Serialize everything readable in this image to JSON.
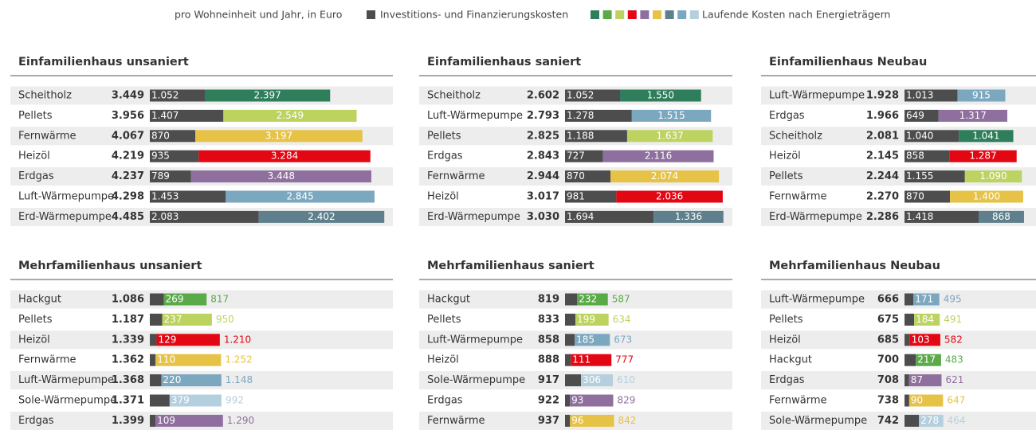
{
  "legend": {
    "note": "pro Wohneinheit und Jahr, in Euro",
    "invest": {
      "name": "Investitions- und Finanzierungskosten",
      "color": "#4d4d4d"
    },
    "running": {
      "name": "Laufende Kosten nach Energieträgern",
      "colors": [
        "#2e7d5b",
        "#5aaa4a",
        "#bcd35f",
        "#e30613",
        "#8e6f9e",
        "#e6c246",
        "#5f7f8c",
        "#7ba7bf",
        "#b4d0de"
      ]
    }
  },
  "chart_data": [
    {
      "type": "stacked_bar",
      "title": "Einfamilienhaus unsaniert",
      "running_label": "inside",
      "categories": [
        "Scheitholz",
        "Pellets",
        "Fernwärme",
        "Heizöl",
        "Erdgas",
        "Luft-Wärmepumpe",
        "Erd-Wärmepumpe"
      ],
      "totals": [
        3449,
        3956,
        4067,
        4219,
        4237,
        4298,
        4485
      ],
      "total_labels": [
        "3.449",
        "3.956",
        "4.067",
        "4.219",
        "4.237",
        "4.298",
        "4.485"
      ],
      "invest": {
        "color": "#4d4d4d",
        "values": [
          1052,
          1407,
          870,
          935,
          789,
          1453,
          2083
        ],
        "value_labels": [
          "1.052",
          "1.407",
          "870",
          "935",
          "789",
          "1.453",
          "2.083"
        ]
      },
      "running": {
        "colors": [
          "#2e7d5b",
          "#bcd35f",
          "#e6c246",
          "#e30613",
          "#8e6f9e",
          "#7ba7bf",
          "#5f7f8c"
        ],
        "values": [
          2397,
          2549,
          3197,
          3284,
          3448,
          2845,
          2402
        ],
        "value_labels": [
          "2.397",
          "2.549",
          "3.197",
          "3.284",
          "3.448",
          "2.845",
          "2.402"
        ]
      }
    },
    {
      "type": "stacked_bar",
      "title": "Einfamilienhaus saniert",
      "running_label": "inside",
      "categories": [
        "Scheitholz",
        "Luft-Wärmepumpe",
        "Pellets",
        "Erdgas",
        "Fernwärme",
        "Heizöl",
        "Erd-Wärmepumpe"
      ],
      "totals": [
        2602,
        2793,
        2825,
        2843,
        2944,
        3017,
        3030
      ],
      "total_labels": [
        "2.602",
        "2.793",
        "2.825",
        "2.843",
        "2.944",
        "3.017",
        "3.030"
      ],
      "invest": {
        "color": "#4d4d4d",
        "values": [
          1052,
          1278,
          1188,
          727,
          870,
          981,
          1694
        ],
        "value_labels": [
          "1.052",
          "1.278",
          "1.188",
          "727",
          "870",
          "981",
          "1.694"
        ]
      },
      "running": {
        "colors": [
          "#2e7d5b",
          "#7ba7bf",
          "#bcd35f",
          "#8e6f9e",
          "#e6c246",
          "#e30613",
          "#5f7f8c"
        ],
        "values": [
          1550,
          1515,
          1637,
          2116,
          2074,
          2036,
          1336
        ],
        "value_labels": [
          "1.550",
          "1.515",
          "1.637",
          "2.116",
          "2.074",
          "2.036",
          "1.336"
        ]
      }
    },
    {
      "type": "stacked_bar",
      "title": "Einfamilienhaus Neubau",
      "running_label": "inside",
      "categories": [
        "Luft-Wärmepumpe",
        "Erdgas",
        "Scheitholz",
        "Heizöl",
        "Pellets",
        "Fernwärme",
        "Erd-Wärmepumpe"
      ],
      "totals": [
        1928,
        1966,
        2081,
        2145,
        2244,
        2270,
        2286
      ],
      "total_labels": [
        "1.928",
        "1.966",
        "2.081",
        "2.145",
        "2.244",
        "2.270",
        "2.286"
      ],
      "invest": {
        "color": "#4d4d4d",
        "values": [
          1013,
          649,
          1040,
          858,
          1155,
          870,
          1418
        ],
        "value_labels": [
          "1.013",
          "649",
          "1.040",
          "858",
          "1.155",
          "870",
          "1.418"
        ]
      },
      "running": {
        "colors": [
          "#7ba7bf",
          "#8e6f9e",
          "#2e7d5b",
          "#e30613",
          "#bcd35f",
          "#e6c246",
          "#5f7f8c"
        ],
        "values": [
          915,
          1317,
          1041,
          1287,
          1090,
          1400,
          868
        ],
        "value_labels": [
          "915",
          "1.317",
          "1.041",
          "1.287",
          "1.090",
          "1.400",
          "868"
        ]
      }
    },
    {
      "type": "stacked_bar",
      "title": "Mehrfamilienhaus unsaniert",
      "running_label": "outside",
      "categories": [
        "Hackgut",
        "Pellets",
        "Heizöl",
        "Fernwärme",
        "Luft-Wärmepumpe",
        "Sole-Wärmepumpe",
        "Erdgas"
      ],
      "totals": [
        1086,
        1187,
        1339,
        1362,
        1368,
        1371,
        1399
      ],
      "total_labels": [
        "1.086",
        "1.187",
        "1.339",
        "1.362",
        "1.368",
        "1.371",
        "1.399"
      ],
      "invest": {
        "color": "#4d4d4d",
        "values": [
          269,
          237,
          129,
          110,
          220,
          379,
          109
        ],
        "value_labels": [
          "269",
          "237",
          "129",
          "110",
          "220",
          "379",
          "109"
        ]
      },
      "running": {
        "colors": [
          "#5aaa4a",
          "#bcd35f",
          "#e30613",
          "#e6c246",
          "#7ba7bf",
          "#b4d0de",
          "#8e6f9e"
        ],
        "values": [
          817,
          950,
          1210,
          1252,
          1148,
          992,
          1290
        ],
        "value_labels": [
          "817",
          "950",
          "1.210",
          "1.252",
          "1.148",
          "992",
          "1.290"
        ]
      }
    },
    {
      "type": "stacked_bar",
      "title": "Mehrfamilienhaus saniert",
      "running_label": "outside",
      "categories": [
        "Hackgut",
        "Pellets",
        "Luft-Wärmepumpe",
        "Heizöl",
        "Sole-Wärmepumpe",
        "Erdgas",
        "Fernwärme"
      ],
      "totals": [
        819,
        833,
        858,
        888,
        917,
        922,
        937
      ],
      "total_labels": [
        "819",
        "833",
        "858",
        "888",
        "917",
        "922",
        "937"
      ],
      "invest": {
        "color": "#4d4d4d",
        "values": [
          232,
          199,
          185,
          111,
          306,
          93,
          96
        ],
        "value_labels": [
          "232",
          "199",
          "185",
          "111",
          "306",
          "93",
          "96"
        ]
      },
      "running": {
        "colors": [
          "#5aaa4a",
          "#bcd35f",
          "#7ba7bf",
          "#e30613",
          "#b4d0de",
          "#8e6f9e",
          "#e6c246"
        ],
        "values": [
          587,
          634,
          673,
          777,
          610,
          829,
          842
        ],
        "value_labels": [
          "587",
          "634",
          "673",
          "777",
          "610",
          "829",
          "842"
        ]
      }
    },
    {
      "type": "stacked_bar",
      "title": "Mehrfamilienhaus Neubau",
      "running_label": "outside",
      "categories": [
        "Luft-Wärmepumpe",
        "Pellets",
        "Heizöl",
        "Hackgut",
        "Erdgas",
        "Fernwärme",
        "Sole-Wärmepumpe"
      ],
      "totals": [
        666,
        675,
        685,
        700,
        708,
        738,
        742
      ],
      "total_labels": [
        "666",
        "675",
        "685",
        "700",
        "708",
        "738",
        "742"
      ],
      "invest": {
        "color": "#4d4d4d",
        "values": [
          171,
          184,
          103,
          217,
          87,
          90,
          278
        ],
        "value_labels": [
          "171",
          "184",
          "103",
          "217",
          "87",
          "90",
          "278"
        ]
      },
      "running": {
        "colors": [
          "#7ba7bf",
          "#bcd35f",
          "#e30613",
          "#5aaa4a",
          "#8e6f9e",
          "#e6c246",
          "#b4d0de"
        ],
        "values": [
          495,
          491,
          582,
          483,
          621,
          647,
          464
        ],
        "value_labels": [
          "495",
          "491",
          "582",
          "483",
          "621",
          "647",
          "464"
        ]
      }
    }
  ]
}
